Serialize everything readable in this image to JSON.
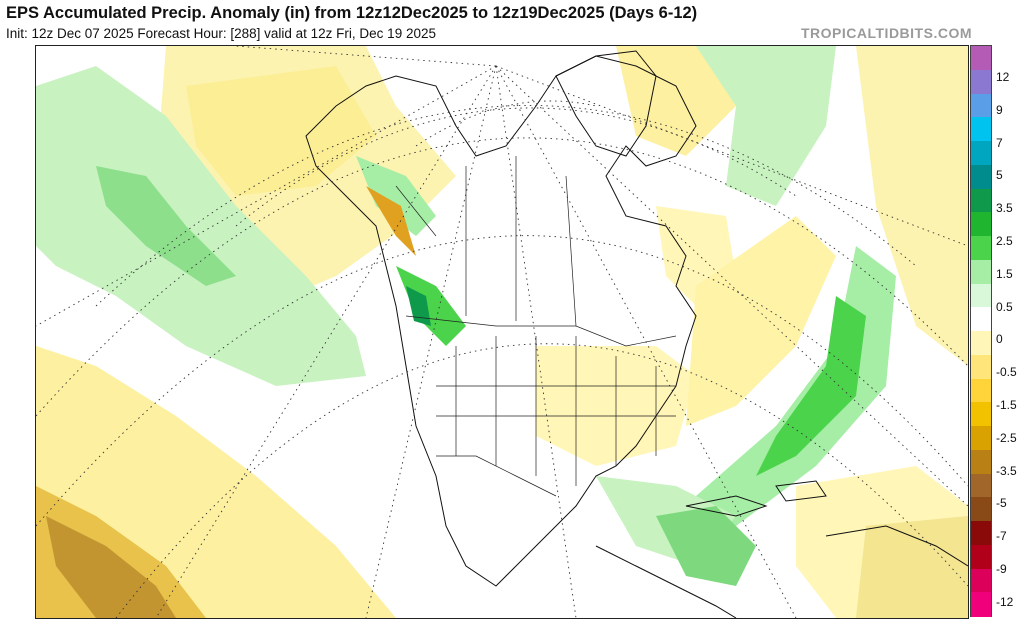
{
  "header": {
    "title": "EPS Accumulated Precip. Anomaly (in) from 12z12Dec2025 to 12z19Dec2025 (Days 6-12)",
    "subtitle": "Init: 12z Dec 07 2025   Forecast Hour: [288]   valid at 12z Fri, Dec 19 2025",
    "brand": "TROPICALTIDBITS.COM"
  },
  "legend": {
    "colors": [
      "#b35bb5",
      "#8b78d0",
      "#5a9ee8",
      "#00c3f0",
      "#00a6c0",
      "#008c8c",
      "#0e9a4a",
      "#1fb52f",
      "#4bd34b",
      "#a6eea6",
      "#d9f7d9",
      "#ffffff",
      "#fff6b8",
      "#ffe57a",
      "#ffd43a",
      "#f2c200",
      "#d9a200",
      "#b88015",
      "#a0662a",
      "#8a4a18",
      "#8a0a0a",
      "#b0001a",
      "#dd005a",
      "#f0007a"
    ],
    "labels": [
      "12",
      "9",
      "7",
      "5",
      "3.5",
      "2.5",
      "1.5",
      "0.5",
      "0",
      "-0.5",
      "-1.5",
      "-2.5",
      "-3.5",
      "-5",
      "-7",
      "-9",
      "-12"
    ]
  },
  "map": {
    "ocean_color": "#ffffff",
    "line_color": "#111111",
    "graticule_color": "#222222"
  }
}
